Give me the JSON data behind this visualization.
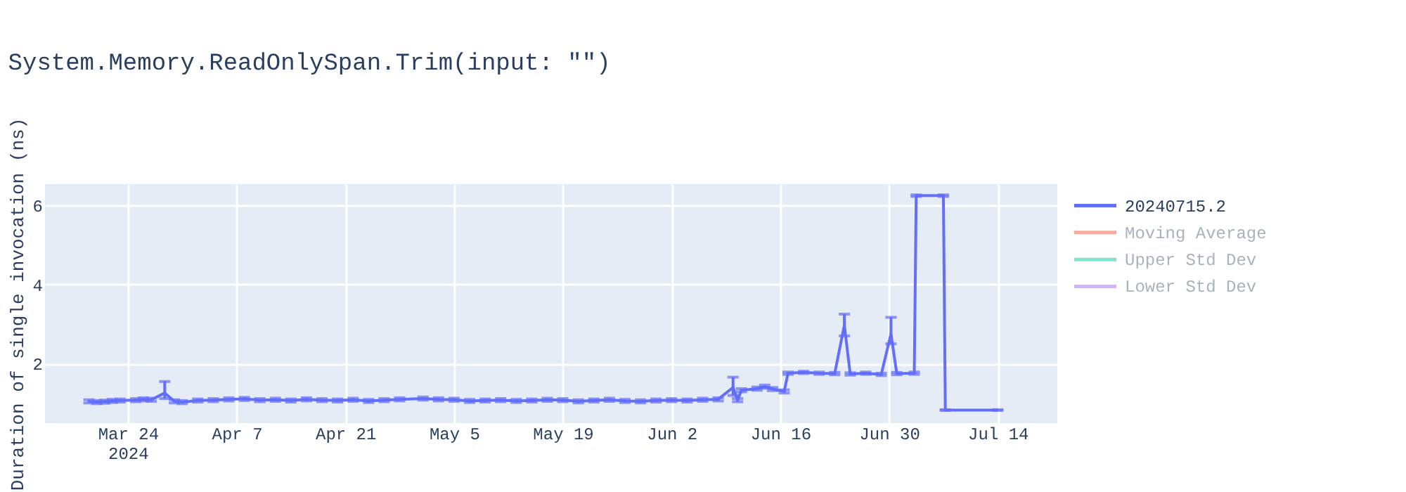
{
  "chart_data": {
    "type": "line",
    "title": "System.Memory.ReadOnlySpan.Trim(input: \"\")",
    "ylabel": "Duration of single invocation (ns)",
    "xlim": [
      "2024-03-13T08:00",
      "2024-07-21T16:00"
    ],
    "xticks": [
      {
        "value": "2024-03-24",
        "label": "Mar 24\n2024"
      },
      {
        "value": "2024-04-07",
        "label": "Apr 7"
      },
      {
        "value": "2024-04-21",
        "label": "Apr 21"
      },
      {
        "value": "2024-05-05",
        "label": "May 5"
      },
      {
        "value": "2024-05-19",
        "label": "May 19"
      },
      {
        "value": "2024-06-02",
        "label": "Jun 2"
      },
      {
        "value": "2024-06-16",
        "label": "Jun 16"
      },
      {
        "value": "2024-06-30",
        "label": "Jun 30"
      },
      {
        "value": "2024-07-14",
        "label": "Jul 14"
      }
    ],
    "ylim": [
      0.5,
      6.53
    ],
    "yticks": [
      2,
      4,
      6
    ],
    "grid": true,
    "legend": "right",
    "series": [
      {
        "name": "20240715.2",
        "color": "#636efa",
        "x": [
          "2024-03-19",
          "2024-03-20",
          "2024-03-21",
          "2024-03-22",
          "2024-03-23",
          "2024-03-25",
          "2024-03-26",
          "2024-03-27",
          "2024-03-28T18:00",
          "2024-03-30",
          "2024-03-31",
          "2024-04-02",
          "2024-04-04",
          "2024-04-06",
          "2024-04-08",
          "2024-04-10",
          "2024-04-12",
          "2024-04-14",
          "2024-04-16",
          "2024-04-18",
          "2024-04-20",
          "2024-04-22",
          "2024-04-24",
          "2024-04-26",
          "2024-04-28",
          "2024-05-01",
          "2024-05-03",
          "2024-05-05",
          "2024-05-07",
          "2024-05-09",
          "2024-05-11",
          "2024-05-13",
          "2024-05-15",
          "2024-05-17",
          "2024-05-19",
          "2024-05-21",
          "2024-05-23",
          "2024-05-25",
          "2024-05-27",
          "2024-05-29",
          "2024-05-31",
          "2024-06-02",
          "2024-06-04",
          "2024-06-06",
          "2024-06-08",
          "2024-06-09T22:00",
          "2024-06-10T12:00",
          "2024-06-11",
          "2024-06-13",
          "2024-06-14",
          "2024-06-15",
          "2024-06-16T12:00",
          "2024-06-17",
          "2024-06-19",
          "2024-06-21",
          "2024-06-23",
          "2024-06-24T06:00",
          "2024-06-25",
          "2024-06-27",
          "2024-06-29",
          "2024-06-30T06:00",
          "2024-07-01",
          "2024-07-03T06:00",
          "2024-07-03T12:00",
          "2024-07-07",
          "2024-07-07T06:00",
          "2024-07-14"
        ],
        "values": [
          1.05,
          1.03,
          1.04,
          1.06,
          1.07,
          1.08,
          1.1,
          1.09,
          1.26,
          1.05,
          1.03,
          1.07,
          1.08,
          1.1,
          1.11,
          1.08,
          1.09,
          1.07,
          1.1,
          1.08,
          1.07,
          1.09,
          1.06,
          1.08,
          1.1,
          1.12,
          1.1,
          1.09,
          1.06,
          1.07,
          1.08,
          1.06,
          1.07,
          1.09,
          1.08,
          1.05,
          1.07,
          1.09,
          1.06,
          1.05,
          1.07,
          1.08,
          1.07,
          1.09,
          1.1,
          1.4,
          1.08,
          1.33,
          1.37,
          1.42,
          1.36,
          1.3,
          1.76,
          1.78,
          1.76,
          1.75,
          2.97,
          1.74,
          1.76,
          1.73,
          2.75,
          1.75,
          1.76,
          6.24,
          6.24,
          0.83,
          0.83
        ],
        "errors": [
          0.04,
          0.04,
          0.04,
          0.04,
          0.04,
          0.04,
          0.04,
          0.04,
          [
            1.12,
            1.55
          ],
          0.04,
          0.04,
          0.04,
          0.04,
          0.04,
          0.04,
          0.04,
          0.04,
          0.04,
          0.04,
          0.04,
          0.04,
          0.04,
          0.04,
          0.04,
          0.04,
          0.04,
          0.04,
          0.04,
          0.04,
          0.04,
          0.04,
          0.04,
          0.04,
          0.04,
          0.04,
          0.04,
          0.04,
          0.04,
          0.04,
          0.04,
          0.04,
          0.04,
          0.04,
          0.04,
          0.04,
          [
            1.2,
            1.66
          ],
          0.04,
          0.04,
          0.04,
          0.04,
          0.04,
          0.04,
          0.03,
          0.03,
          0.03,
          0.03,
          [
            2.7,
            3.25
          ],
          0.03,
          0.03,
          0.03,
          [
            2.5,
            3.17
          ],
          0.03,
          0.03,
          0.02,
          0.02,
          0.01,
          0.01
        ]
      },
      {
        "name": "Moving Average",
        "color": "#ef553b",
        "values": [
          null
        ]
      },
      {
        "name": "Upper Std Dev",
        "color": "#00cc96",
        "values": [
          null
        ]
      },
      {
        "name": "Lower Std Dev",
        "color": "#ab63fa",
        "values": [
          null
        ]
      }
    ]
  }
}
